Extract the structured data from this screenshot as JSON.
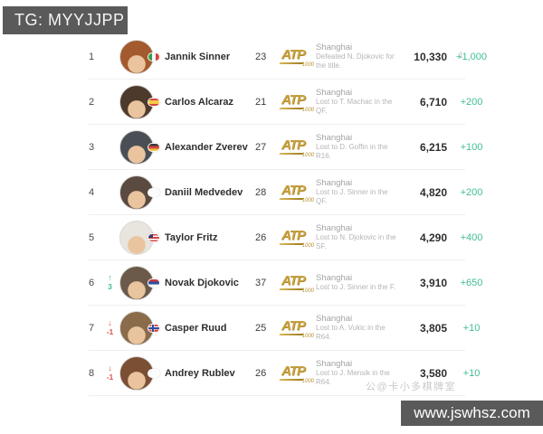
{
  "header": {
    "tag": "TG: MYYJJPP"
  },
  "footer": {
    "url": "www.jswhsz.com"
  },
  "watermark": {
    "text": "公@卡小多棋牌室",
    "edge_artifact": "1"
  },
  "atp_logo": {
    "text": "ATP",
    "sub": "1000"
  },
  "colors": {
    "bar_gray": "#5a5a5a",
    "positive_green": "#3fbf90",
    "negative_red": "#d9564a",
    "atp_gold": "#c9a23f"
  },
  "rows": [
    {
      "rank": "1",
      "movement": null,
      "name": "Jannik Sinner",
      "age": "23",
      "country": "italy",
      "avatar_color": "#a35a2e",
      "event": "Shanghai",
      "result": "Defeated N. Djokovic for the title.",
      "points": "10,330",
      "change": "+1,000"
    },
    {
      "rank": "2",
      "movement": null,
      "name": "Carlos Alcaraz",
      "age": "21",
      "country": "spain",
      "avatar_color": "#4e3a2c",
      "event": "Shanghai",
      "result": "Lost to T. Machac in the QF.",
      "points": "6,710",
      "change": "+200"
    },
    {
      "rank": "3",
      "movement": null,
      "name": "Alexander Zverev",
      "age": "27",
      "country": "germany",
      "avatar_color": "#4a4f55",
      "event": "Shanghai",
      "result": "Lost to D. Goffin in the R16.",
      "points": "6,215",
      "change": "+100"
    },
    {
      "rank": "4",
      "movement": null,
      "name": "Daniil Medvedev",
      "age": "28",
      "country": "neutral",
      "avatar_color": "#5b4a3f",
      "event": "Shanghai",
      "result": "Lost to J. Sinner in the QF.",
      "points": "4,820",
      "change": "+200"
    },
    {
      "rank": "5",
      "movement": null,
      "name": "Taylor Fritz",
      "age": "26",
      "country": "usa",
      "avatar_color": "#e8e4de",
      "event": "Shanghai",
      "result": "Lost to N. Djokovic in the SF.",
      "points": "4,290",
      "change": "+400"
    },
    {
      "rank": "6",
      "movement": {
        "dir": "up",
        "value": "3"
      },
      "name": "Novak Djokovic",
      "age": "37",
      "country": "serbia",
      "avatar_color": "#6b5a4a",
      "event": "Shanghai",
      "result": "Lost to J. Sinner in the F.",
      "points": "3,910",
      "change": "+650"
    },
    {
      "rank": "7",
      "movement": {
        "dir": "down",
        "value": "-1"
      },
      "name": "Casper Ruud",
      "age": "25",
      "country": "norway",
      "avatar_color": "#8a6b4a",
      "event": "Shanghai",
      "result": "Lost to A. Vukic in the R64.",
      "points": "3,805",
      "change": "+10"
    },
    {
      "rank": "8",
      "movement": {
        "dir": "down",
        "value": "-1"
      },
      "name": "Andrey Rublev",
      "age": "26",
      "country": "neutral",
      "avatar_color": "#7a4f33",
      "event": "Shanghai",
      "result": "Lost to J. Mensik in the R64.",
      "points": "3,580",
      "change": "+10"
    }
  ]
}
